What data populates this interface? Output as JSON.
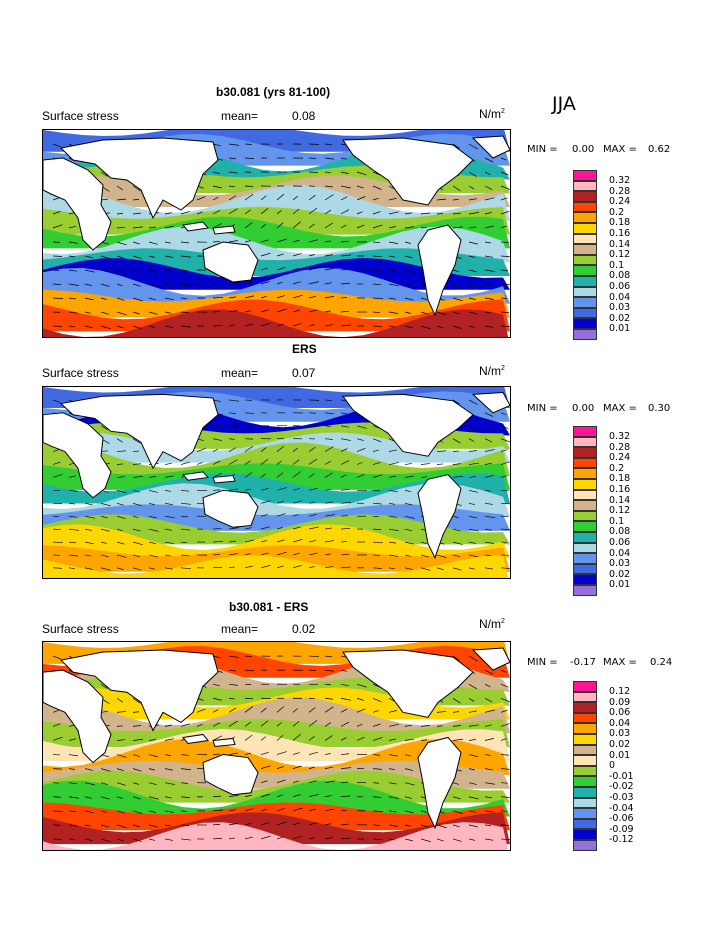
{
  "season": "JJA",
  "panels": [
    {
      "title": "b30.081 (yrs 81-100)",
      "field": "Surface stress",
      "mean_label": "mean=",
      "mean_value": "0.08",
      "units_base": "N/m",
      "units_exp": "2",
      "min_label": "MIN =",
      "min_value": "0.00",
      "max_label": "MAX =",
      "max_value": "0.62",
      "colorbar": {
        "colors": [
          "#ff1493",
          "#ffb6c1",
          "#b22222",
          "#ff4500",
          "#ffa500",
          "#ffd700",
          "#ffe4b5",
          "#d2b48c",
          "#9acd32",
          "#32cd32",
          "#20b2aa",
          "#add8e6",
          "#6495ed",
          "#4169e1",
          "#0000cd",
          "#9370db"
        ],
        "labels": [
          "0.32",
          "0.28",
          "0.24",
          "0.2",
          "0.18",
          "0.16",
          "0.14",
          "0.12",
          "0.1",
          "0.08",
          "0.06",
          "0.04",
          "0.03",
          "0.02",
          "0.01"
        ]
      }
    },
    {
      "title": "ERS",
      "field": "Surface stress",
      "mean_label": "mean=",
      "mean_value": "0.07",
      "units_base": "N/m",
      "units_exp": "2",
      "min_label": "MIN =",
      "min_value": "0.00",
      "max_label": "MAX =",
      "max_value": "0.30",
      "colorbar": {
        "colors": [
          "#ff1493",
          "#ffb6c1",
          "#b22222",
          "#ff4500",
          "#ffa500",
          "#ffd700",
          "#ffe4b5",
          "#d2b48c",
          "#9acd32",
          "#32cd32",
          "#20b2aa",
          "#add8e6",
          "#6495ed",
          "#4169e1",
          "#0000cd",
          "#9370db"
        ],
        "labels": [
          "0.32",
          "0.28",
          "0.24",
          "0.2",
          "0.18",
          "0.16",
          "0.14",
          "0.12",
          "0.1",
          "0.08",
          "0.06",
          "0.04",
          "0.03",
          "0.02",
          "0.01"
        ]
      }
    },
    {
      "title": "b30.081 - ERS",
      "field": "Surface stress",
      "mean_label": "mean=",
      "mean_value": "0.02",
      "units_base": "N/m",
      "units_exp": "2",
      "min_label": "MIN =",
      "min_value": "-0.17",
      "max_label": "MAX =",
      "max_value": "0.24",
      "colorbar": {
        "colors": [
          "#ff1493",
          "#ffb6c1",
          "#b22222",
          "#ff4500",
          "#ffa500",
          "#ffd700",
          "#d2b48c",
          "#ffe4b5",
          "#9acd32",
          "#32cd32",
          "#20b2aa",
          "#add8e6",
          "#6495ed",
          "#4169e1",
          "#0000cd",
          "#9370db"
        ],
        "labels": [
          "0.12",
          "0.09",
          "0.06",
          "0.04",
          "0.03",
          "0.02",
          "0.01",
          "0",
          "-0.01",
          "-0.02",
          "-0.03",
          "-0.04",
          "-0.06",
          "-0.09",
          "-0.12"
        ]
      }
    }
  ]
}
